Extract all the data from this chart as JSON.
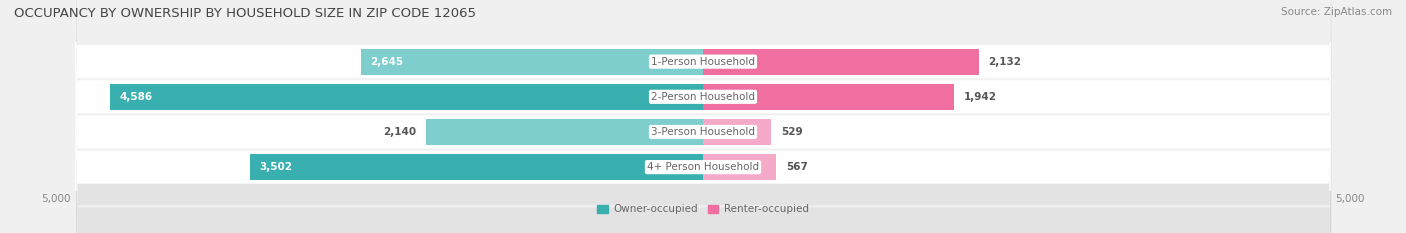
{
  "title": "OCCUPANCY BY OWNERSHIP BY HOUSEHOLD SIZE IN ZIP CODE 12065",
  "source": "Source: ZipAtlas.com",
  "categories": [
    "1-Person Household",
    "2-Person Household",
    "3-Person Household",
    "4+ Person Household"
  ],
  "owner_values": [
    2645,
    4586,
    2140,
    3502
  ],
  "renter_values": [
    2132,
    1942,
    529,
    567
  ],
  "max_value": 5000,
  "owner_color_dark": "#3AAFAF",
  "owner_color_light": "#7ECECE",
  "renter_color_dark": "#EE6FA0",
  "renter_color_light": "#F4AAC8",
  "bg_color": "#f0f0f0",
  "row_bg_color": "#ffffff",
  "shadow_color": "#cccccc",
  "title_color": "#444444",
  "source_color": "#888888",
  "value_color_dark": "#555555",
  "value_color_light": "#ffffff",
  "cat_color": "#666666",
  "title_fontsize": 9.5,
  "source_fontsize": 7.5,
  "tick_fontsize": 7.5,
  "cat_fontsize": 7.5,
  "value_fontsize": 7.5
}
